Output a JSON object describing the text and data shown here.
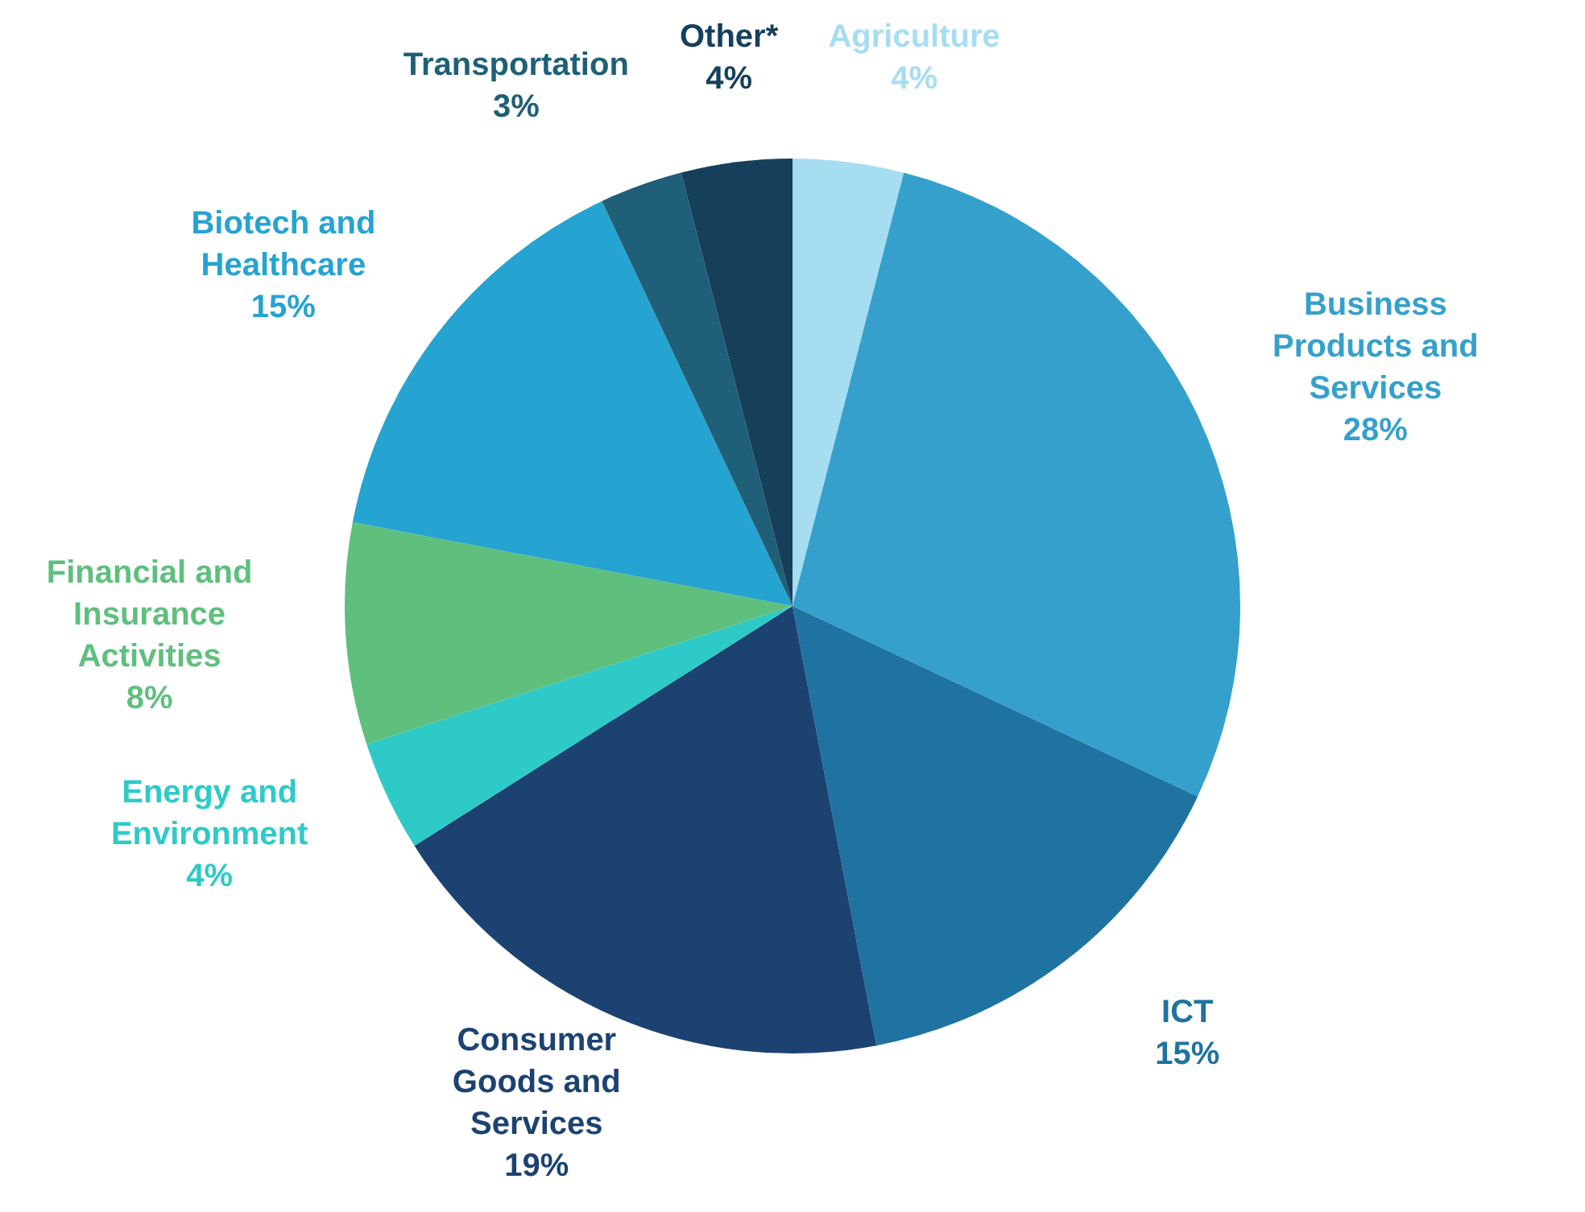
{
  "chart_data": {
    "type": "pie",
    "categories": [
      "Agriculture",
      "Business Products and Services",
      "ICT",
      "Consumer Goods and Services",
      "Energy and Environment",
      "Financial and Insurance Activities",
      "Biotech and Healthcare",
      "Transportation",
      "Other*"
    ],
    "values": [
      4,
      28,
      15,
      19,
      4,
      8,
      15,
      3,
      4
    ],
    "colors": [
      "#a6ddf0",
      "#35a0cc",
      "#1f73a0",
      "#1c4272",
      "#2ecac8",
      "#5fbf7d",
      "#25a3d1",
      "#1f5f78",
      "#163f5c"
    ],
    "value_labels": [
      "4%",
      "28%",
      "15%",
      "19%",
      "4%",
      "8%",
      "15%",
      "3%",
      "4%"
    ]
  }
}
